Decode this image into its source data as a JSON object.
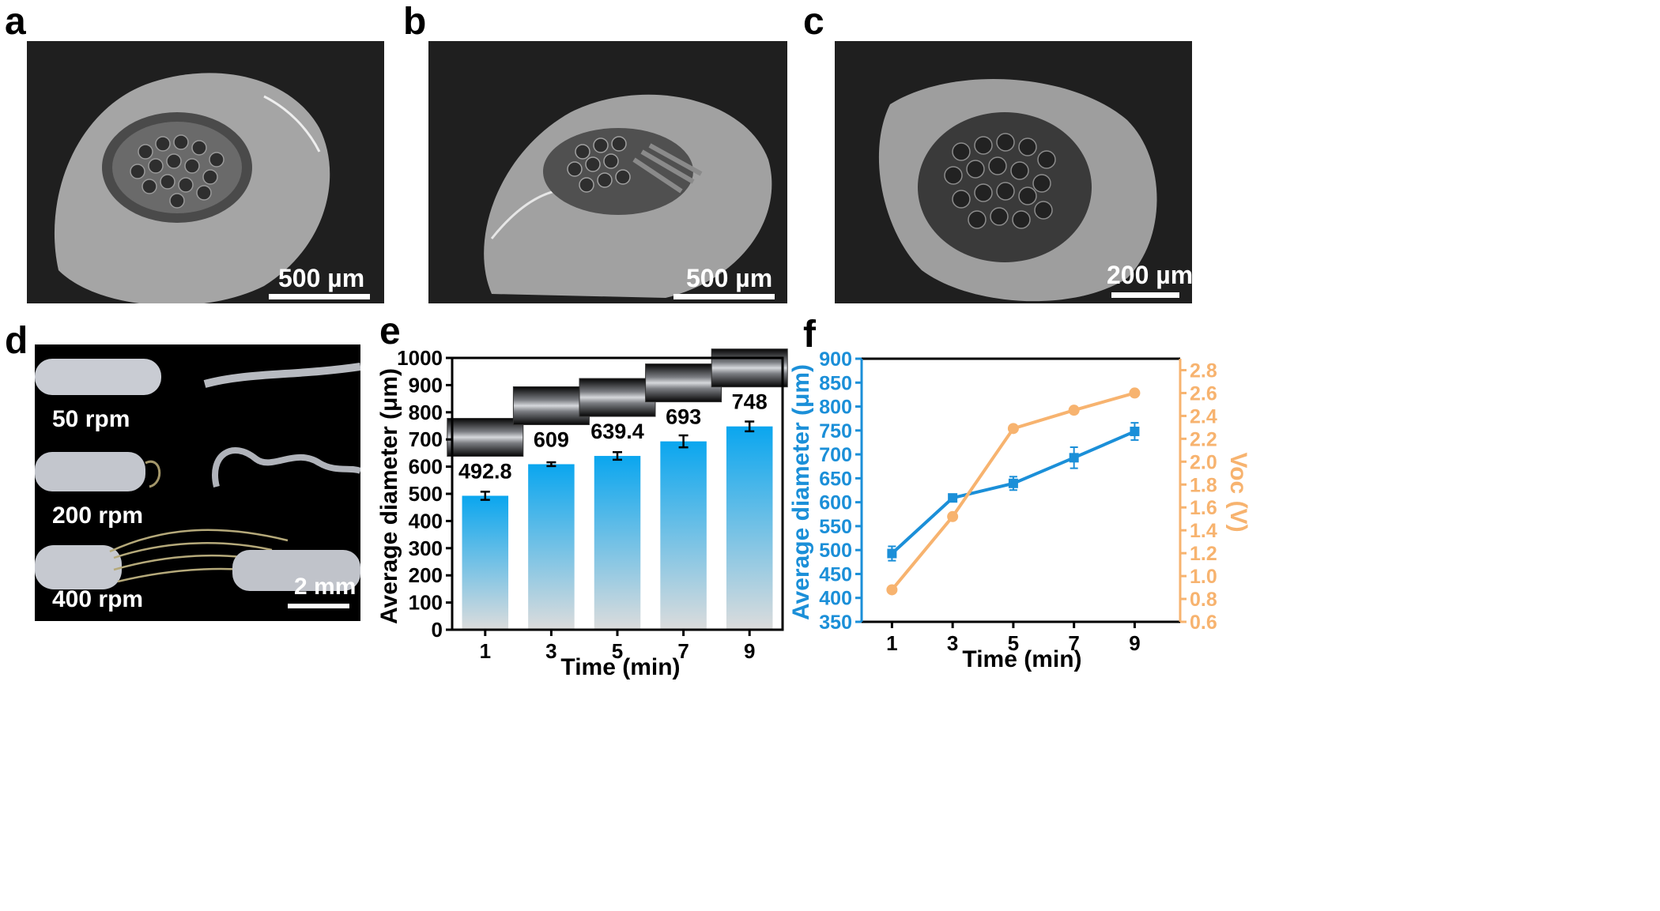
{
  "panels": {
    "a": {
      "letter": "a",
      "scale": "500 µm"
    },
    "b": {
      "letter": "b",
      "scale": "500 µm"
    },
    "c": {
      "letter": "c",
      "scale": "200 µm"
    },
    "d": {
      "letter": "d",
      "scale": "2 mm",
      "speeds": [
        "50 rpm",
        "200 rpm",
        "400 rpm"
      ]
    },
    "e": {
      "letter": "e"
    },
    "f": {
      "letter": "f"
    }
  },
  "colors": {
    "blue": "#1b8fd8",
    "orange": "#f7b36f",
    "bar_top": "#0aa6ef",
    "bar_bottom": "#dcdcdc",
    "photo_bg": "#1f1f1f"
  },
  "chart_data": [
    {
      "type": "bar",
      "xlabel": "Time (min)",
      "ylabel": "Average diameter (μm)",
      "categories": [
        "1",
        "3",
        "5",
        "7",
        "9"
      ],
      "values": [
        492.8,
        609,
        639.4,
        693,
        748
      ],
      "value_labels": [
        "492.8",
        "609",
        "639.4",
        "693",
        "748"
      ],
      "errors": [
        15,
        7,
        14,
        22,
        18
      ],
      "ylim": [
        0,
        1000
      ],
      "yticks": [
        0,
        100,
        200,
        300,
        400,
        500,
        600,
        700,
        800,
        900,
        1000
      ]
    },
    {
      "type": "line",
      "xlabel": "Time (min)",
      "ylabel_left": "Average diameter (μm)",
      "ylabel_right": "Voc (V)",
      "x": [
        1,
        3,
        5,
        7,
        9
      ],
      "series": [
        {
          "values": [
            492.8,
            609,
            639.4,
            693,
            748
          ],
          "errors": [
            15,
            7,
            14,
            22,
            18
          ],
          "axis": "left",
          "marker": "square"
        },
        {
          "values": [
            0.88,
            1.52,
            2.29,
            2.45,
            2.6
          ],
          "axis": "right",
          "marker": "circle"
        }
      ],
      "ylim_left": [
        350,
        900
      ],
      "yticks_left": [
        350,
        400,
        450,
        500,
        550,
        600,
        650,
        700,
        750,
        800,
        850,
        900
      ],
      "ylim_right": [
        0.6,
        2.9
      ],
      "yticks_right": [
        "0.6",
        "0.8",
        "1.0",
        "1.2",
        "1.4",
        "1.6",
        "1.8",
        "2.0",
        "2.2",
        "2.4",
        "2.6",
        "2.8"
      ]
    }
  ]
}
